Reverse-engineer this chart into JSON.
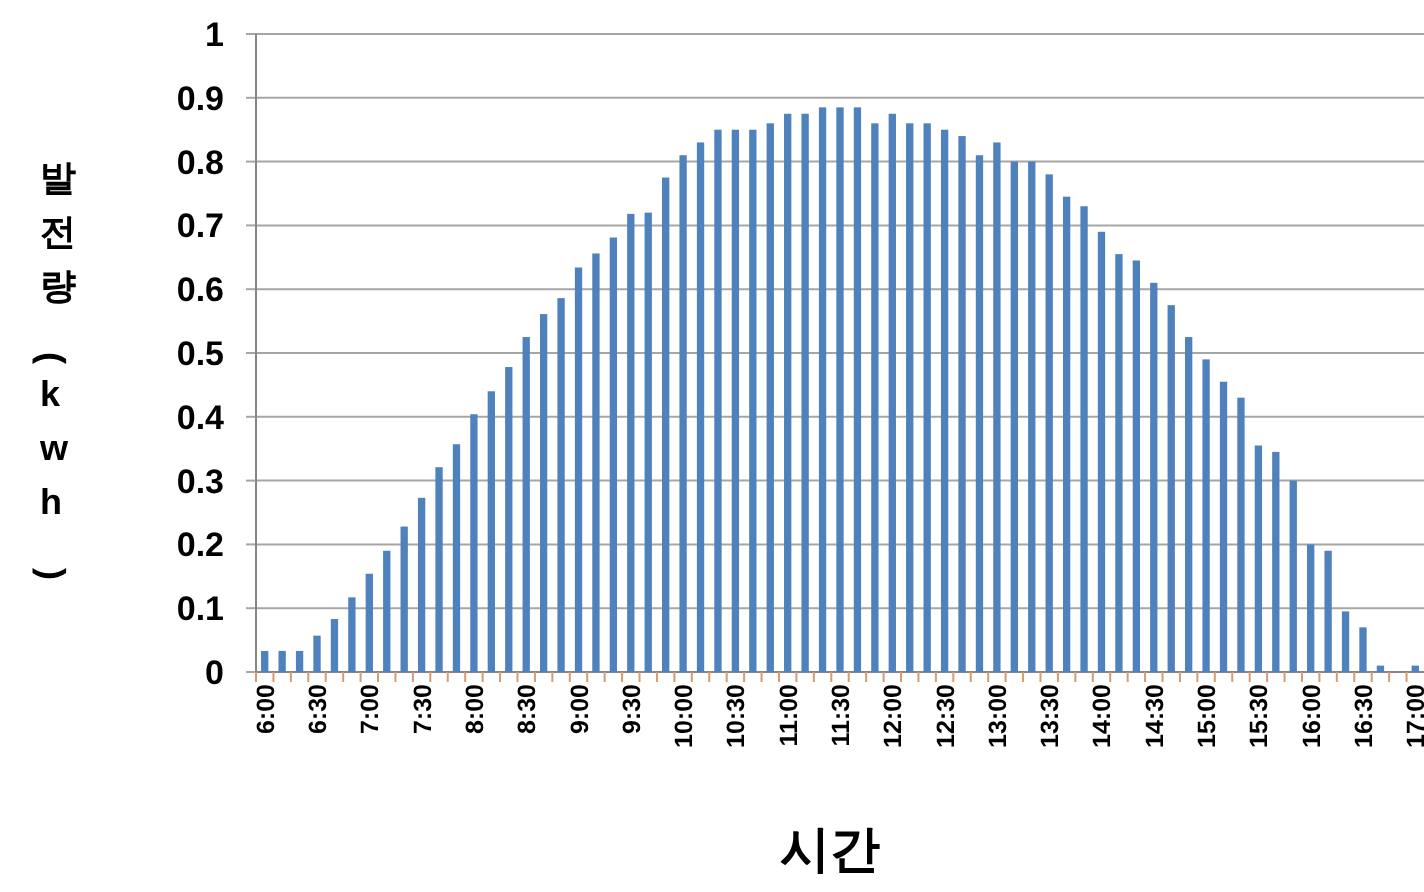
{
  "chart_data": {
    "type": "bar",
    "xlabel": "시간",
    "ylabel": "발전량(kwh)",
    "categories": [
      "6:00",
      null,
      null,
      "6:30",
      null,
      null,
      "7:00",
      null,
      null,
      "7:30",
      null,
      null,
      "8:00",
      null,
      null,
      "8:30",
      null,
      null,
      "9:00",
      null,
      null,
      "9:30",
      null,
      null,
      "10:00",
      null,
      null,
      "10:30",
      null,
      null,
      "11:00",
      null,
      null,
      "11:30",
      null,
      null,
      "12:00",
      null,
      null,
      "12:30",
      null,
      null,
      "13:00",
      null,
      null,
      "13:30",
      null,
      null,
      "14:00",
      null,
      null,
      "14:30",
      null,
      null,
      "15:00",
      null,
      null,
      "15:30",
      null,
      null,
      "16:00",
      null,
      null,
      "16:30",
      null,
      null,
      "17:00"
    ],
    "values": [
      0.033,
      0.033,
      0.033,
      0.057,
      0.083,
      0.117,
      0.154,
      0.19,
      0.228,
      0.273,
      0.321,
      0.357,
      0.404,
      0.44,
      0.478,
      0.525,
      0.561,
      0.586,
      0.634,
      0.656,
      0.681,
      0.718,
      0.72,
      0.775,
      0.81,
      0.83,
      0.85,
      0.85,
      0.85,
      0.86,
      0.875,
      0.875,
      0.885,
      0.885,
      0.885,
      0.86,
      0.875,
      0.86,
      0.86,
      0.85,
      0.84,
      0.81,
      0.83,
      0.8,
      0.8,
      0.78,
      0.745,
      0.73,
      0.69,
      0.655,
      0.645,
      0.61,
      0.575,
      0.525,
      0.49,
      0.455,
      0.43,
      0.355,
      0.345,
      0.3,
      0.2,
      0.19,
      0.095,
      0.07,
      0.01,
      0,
      0.01
    ],
    "color": "#4f81bd",
    "ylim": [
      0,
      1
    ],
    "yticks": [
      0,
      0.1,
      0.2,
      0.3,
      0.4,
      0.5,
      0.6,
      0.7,
      0.8,
      0.9,
      1
    ],
    "grid": "y"
  }
}
